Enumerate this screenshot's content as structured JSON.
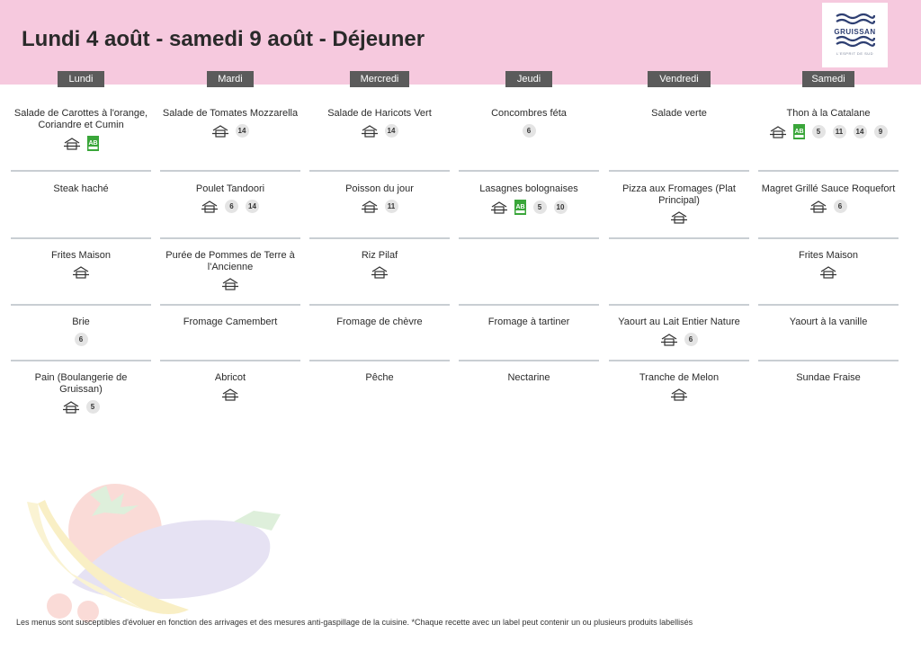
{
  "page": {
    "title": "Lundi 4 août - samedi 9 août  - Déjeuner",
    "header_color": "#f6c9de",
    "logo": {
      "text": "GRUISSAN",
      "subtitle": "L'ESPRIT DE SUD"
    },
    "footer": "Les menus sont susceptibles d'évoluer en fonction des arrivages et des mesures anti-gaspillage de la cuisine. *Chaque recette avec un label peut contenir un ou plusieurs produits labellisés"
  },
  "days": [
    "Lundi",
    "Mardi",
    "Mercredi",
    "Jeudi",
    "Vendredi",
    "Samedi"
  ],
  "rows": [
    [
      {
        "name": "Salade de Carottes à l'orange, Coriandre et Cumin",
        "fait_maison": true,
        "bio": true,
        "allergens": []
      },
      {
        "name": "Salade de Tomates Mozzarella",
        "fait_maison": true,
        "bio": false,
        "allergens": [
          "14"
        ]
      },
      {
        "name": "Salade de Haricots Vert",
        "fait_maison": true,
        "bio": false,
        "allergens": [
          "14"
        ]
      },
      {
        "name": "Concombres féta",
        "fait_maison": false,
        "bio": false,
        "allergens": [
          "6"
        ]
      },
      {
        "name": "Salade verte",
        "fait_maison": false,
        "bio": false,
        "allergens": []
      },
      {
        "name": "Thon à la Catalane",
        "fait_maison": true,
        "bio": true,
        "allergens": [
          "5",
          "11",
          "14",
          "9"
        ]
      }
    ],
    [
      {
        "name": "Steak haché",
        "fait_maison": false,
        "bio": false,
        "allergens": []
      },
      {
        "name": "Poulet Tandoori",
        "fait_maison": true,
        "bio": false,
        "allergens": [
          "6",
          "14"
        ]
      },
      {
        "name": "Poisson du jour",
        "fait_maison": true,
        "bio": false,
        "allergens": [
          "11"
        ]
      },
      {
        "name": "Lasagnes bolognaises",
        "fait_maison": true,
        "bio": true,
        "allergens": [
          "5",
          "10"
        ]
      },
      {
        "name": "Pizza aux Fromages  (Plat Principal)",
        "fait_maison": true,
        "bio": false,
        "allergens": []
      },
      {
        "name": "Magret Grillé Sauce Roquefort",
        "fait_maison": true,
        "bio": false,
        "allergens": [
          "6"
        ]
      }
    ],
    [
      {
        "name": "Frites Maison",
        "fait_maison": true,
        "bio": false,
        "allergens": []
      },
      {
        "name": "Purée de Pommes de Terre à l'Ancienne",
        "fait_maison": true,
        "bio": false,
        "allergens": []
      },
      {
        "name": "Riz Pilaf",
        "fait_maison": true,
        "bio": false,
        "allergens": []
      },
      {
        "name": "",
        "fait_maison": false,
        "bio": false,
        "allergens": []
      },
      {
        "name": "",
        "fait_maison": false,
        "bio": false,
        "allergens": []
      },
      {
        "name": "Frites Maison",
        "fait_maison": true,
        "bio": false,
        "allergens": []
      }
    ],
    [
      {
        "name": "Brie",
        "fait_maison": false,
        "bio": false,
        "allergens": [
          "6"
        ]
      },
      {
        "name": "Fromage Camembert",
        "fait_maison": false,
        "bio": false,
        "allergens": []
      },
      {
        "name": "Fromage de chèvre",
        "fait_maison": false,
        "bio": false,
        "allergens": []
      },
      {
        "name": "Fromage à tartiner",
        "fait_maison": false,
        "bio": false,
        "allergens": []
      },
      {
        "name": "Yaourt au Lait Entier Nature",
        "fait_maison": true,
        "bio": false,
        "allergens": [
          "6"
        ]
      },
      {
        "name": "Yaourt à la vanille",
        "fait_maison": false,
        "bio": false,
        "allergens": []
      }
    ],
    [
      {
        "name": "Pain (Boulangerie de Gruissan)",
        "fait_maison": true,
        "bio": false,
        "allergens": [
          "5"
        ]
      },
      {
        "name": "Abricot",
        "fait_maison": true,
        "bio": false,
        "allergens": []
      },
      {
        "name": "Pêche",
        "fait_maison": false,
        "bio": false,
        "allergens": []
      },
      {
        "name": "Nectarine",
        "fait_maison": false,
        "bio": false,
        "allergens": []
      },
      {
        "name": "Tranche de Melon",
        "fait_maison": true,
        "bio": false,
        "allergens": []
      },
      {
        "name": "Sundae Fraise",
        "fait_maison": false,
        "bio": false,
        "allergens": []
      }
    ]
  ]
}
